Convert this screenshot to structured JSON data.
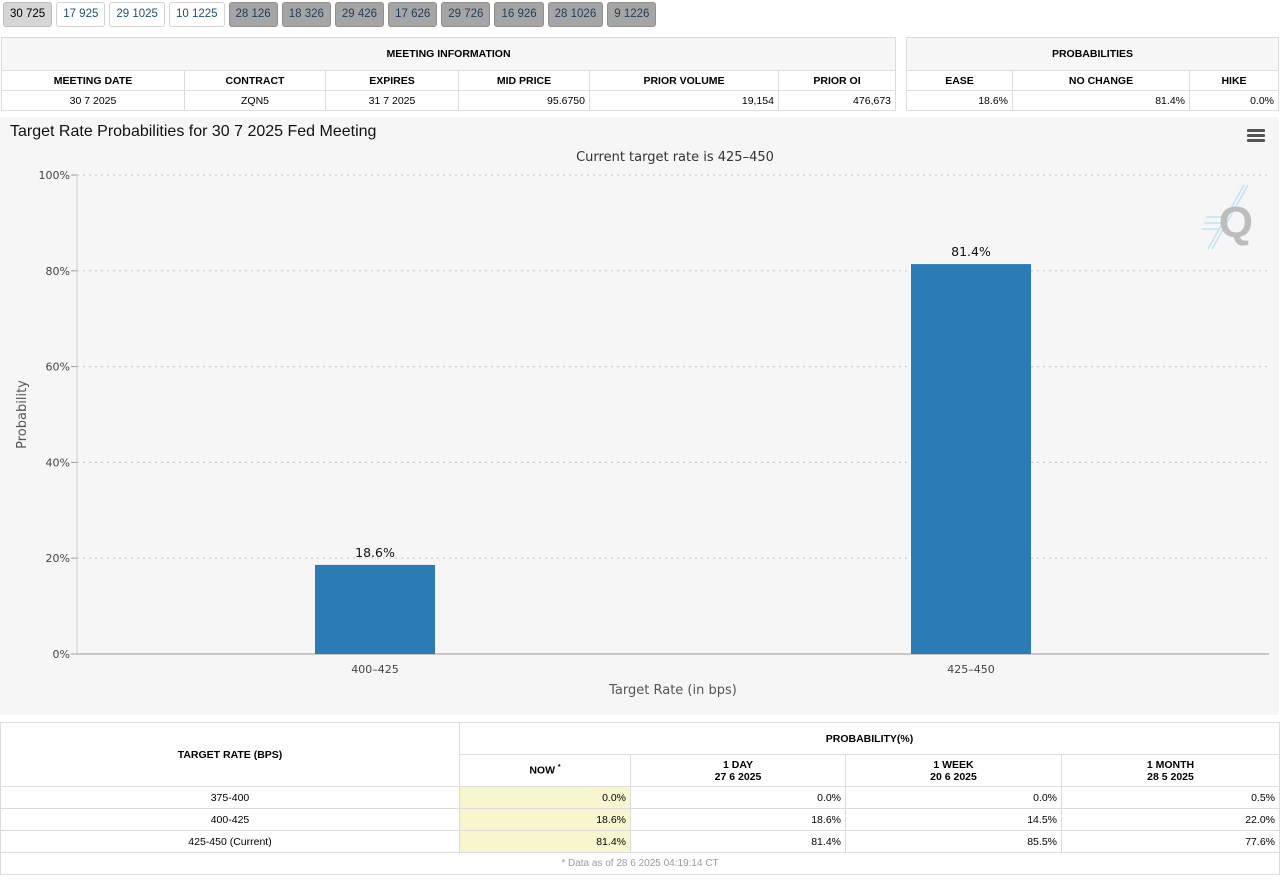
{
  "tabs": [
    {
      "label": "30 725",
      "style": "active"
    },
    {
      "label": "17 925",
      "style": "plain"
    },
    {
      "label": "29 1025",
      "style": "plain"
    },
    {
      "label": "10 1225",
      "style": "plain"
    },
    {
      "label": "28 126",
      "style": "grey"
    },
    {
      "label": "18 326",
      "style": "grey"
    },
    {
      "label": "29 426",
      "style": "grey"
    },
    {
      "label": "17 626",
      "style": "grey"
    },
    {
      "label": "29 726",
      "style": "grey"
    },
    {
      "label": "16 926",
      "style": "grey"
    },
    {
      "label": "28 1026",
      "style": "grey"
    },
    {
      "label": "9 1226",
      "style": "grey"
    }
  ],
  "meeting_info": {
    "title": "MEETING INFORMATION",
    "headers": [
      "MEETING DATE",
      "CONTRACT",
      "EXPIRES",
      "MID PRICE",
      "PRIOR VOLUME",
      "PRIOR OI"
    ],
    "values": [
      "30 7 2025",
      "ZQN5",
      "31 7 2025",
      "95.6750",
      "19,154",
      "476,673"
    ]
  },
  "probabilities": {
    "title": "PROBABILITIES",
    "headers": [
      "EASE",
      "NO CHANGE",
      "HIKE"
    ],
    "values": [
      "18.6%",
      "81.4%",
      "0.0%"
    ]
  },
  "chart": {
    "title": "Target Rate Probabilities for 30 7 2025 Fed Meeting",
    "menu_icon": "hamburger-menu-icon",
    "logo_icon": "quikstrike-q-logo-icon"
  },
  "chart_data": {
    "type": "bar",
    "title": "Target Rate Probabilities for 30 7 2025 Fed Meeting",
    "subtitle": "Current target rate is 425–450",
    "categories": [
      "400–425",
      "425–450"
    ],
    "values": [
      18.6,
      81.4
    ],
    "data_labels": [
      "18.6%",
      "81.4%"
    ],
    "xlabel": "Target Rate (in bps)",
    "ylabel": "Probability",
    "ylim": [
      0,
      100
    ],
    "y_ticks": [
      "0%",
      "20%",
      "40%",
      "60%",
      "80%",
      "100%"
    ],
    "grid": true,
    "bar_color": "#2b7bb5"
  },
  "prob_table": {
    "col_target": "TARGET RATE (BPS)",
    "col_group": "PROBABILITY(%)",
    "now_label": "NOW",
    "now_mark": "*",
    "periods": [
      {
        "label": "1 DAY",
        "date": "27 6 2025"
      },
      {
        "label": "1 WEEK",
        "date": "20 6 2025"
      },
      {
        "label": "1 MONTH",
        "date": "28 5 2025"
      }
    ],
    "rows": [
      {
        "rate": "375-400",
        "values": [
          "0.0%",
          "0.0%",
          "0.0%",
          "0.5%"
        ]
      },
      {
        "rate": "400-425",
        "values": [
          "18.6%",
          "18.6%",
          "14.5%",
          "22.0%"
        ]
      },
      {
        "rate": "425-450 (Current)",
        "values": [
          "81.4%",
          "81.4%",
          "85.5%",
          "77.6%"
        ]
      }
    ],
    "footnote": "* Data as of 28 6 2025 04:19:14 CT"
  }
}
